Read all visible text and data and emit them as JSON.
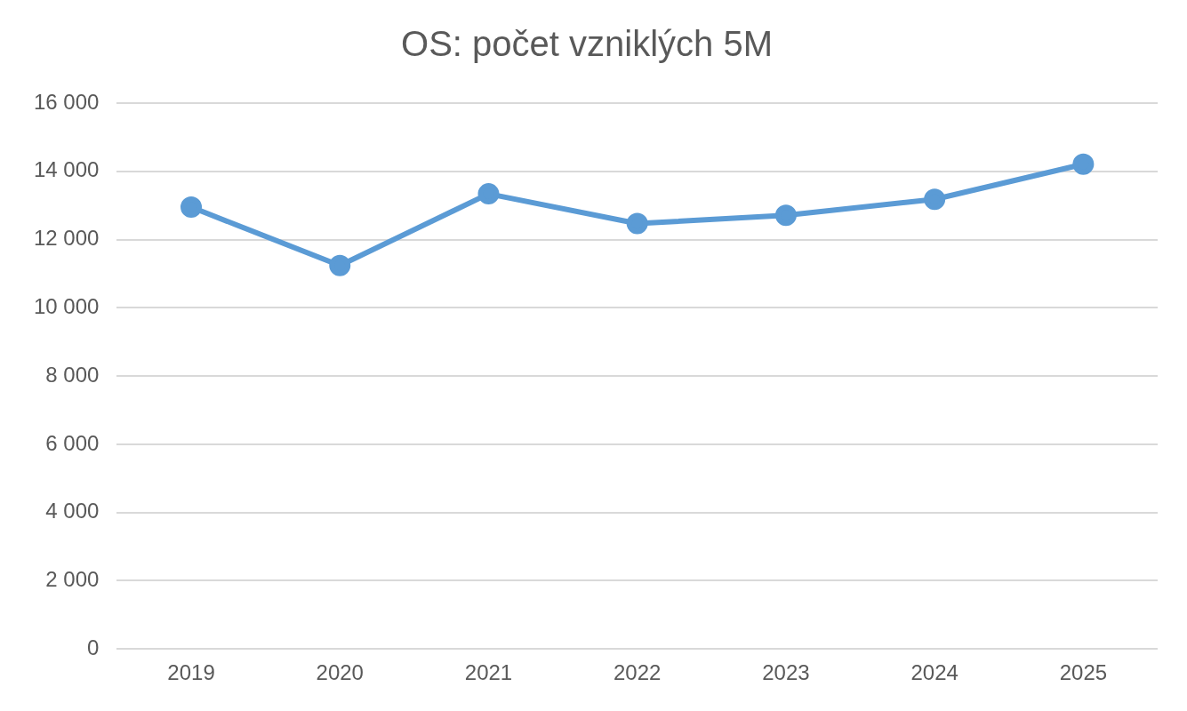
{
  "chart_data": {
    "type": "line",
    "title": "OS: počet vzniklých 5M",
    "categories": [
      "2019",
      "2020",
      "2021",
      "2022",
      "2023",
      "2024",
      "2025"
    ],
    "series": [
      {
        "color": "#5b9bd5",
        "values": [
          12950,
          11240,
          13340,
          12470,
          12710,
          13180,
          14210
        ]
      }
    ],
    "ylim": [
      0,
      16000
    ],
    "yticks": [
      {
        "value": 0,
        "label": "0"
      },
      {
        "value": 2000,
        "label": "2 000"
      },
      {
        "value": 4000,
        "label": "4 000"
      },
      {
        "value": 6000,
        "label": "6 000"
      },
      {
        "value": 8000,
        "label": "8 000"
      },
      {
        "value": 10000,
        "label": "10 000"
      },
      {
        "value": 12000,
        "label": "12 000"
      },
      {
        "value": 14000,
        "label": "14 000"
      },
      {
        "value": 16000,
        "label": "16 000"
      }
    ],
    "grid": "y",
    "legend": false,
    "marker": "circle",
    "line_style": "solid"
  }
}
